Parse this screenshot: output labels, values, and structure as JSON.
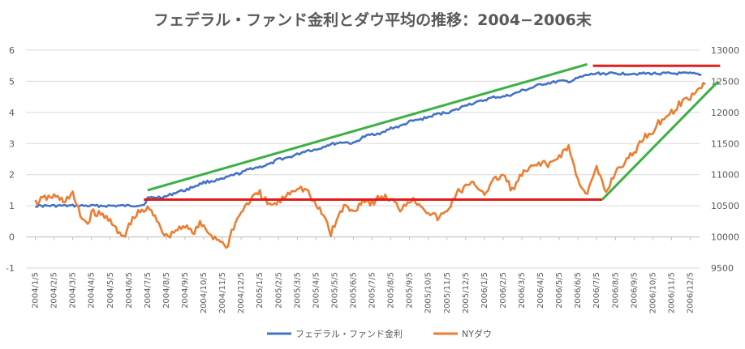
{
  "chart_data": {
    "type": "line",
    "title": "フェデラル・ファンド金利とダウ平均の推移：2004−2006末",
    "legend_position": "bottom",
    "grid": true,
    "y_left": {
      "min": -1,
      "max": 6,
      "ticks": [
        "-1",
        "0",
        "1",
        "2",
        "3",
        "4",
        "5",
        "6"
      ]
    },
    "y_right": {
      "min": 9500,
      "max": 13000,
      "ticks": [
        "9500",
        "10000",
        "10500",
        "11000",
        "11500",
        "12000",
        "12500",
        "13000"
      ]
    },
    "x_labels": [
      "2004/1/5",
      "2004/2/5",
      "2004/3/5",
      "2004/4/5",
      "2004/5/5",
      "2004/6/5",
      "2004/7/5",
      "2004/8/5",
      "2004/9/5",
      "2004/10/5",
      "2004/11/5",
      "2004/12/5",
      "2005/1/5",
      "2005/2/5",
      "2005/3/5",
      "2005/4/5",
      "2005/5/5",
      "2005/6/5",
      "2005/7/5",
      "2005/8/5",
      "2005/9/5",
      "2005/10/5",
      "2005/11/5",
      "2005/12/5",
      "2006/1/5",
      "2006/2/5",
      "2006/3/5",
      "2006/4/5",
      "2006/5/5",
      "2006/6/5",
      "2006/7/5",
      "2006/8/5",
      "2006/9/5",
      "2006/10/5",
      "2006/11/5",
      "2006/12/5"
    ],
    "series": [
      {
        "name": "フェデラル・ファンド金利",
        "axis": "left",
        "color": "#4472C4",
        "points": [
          [
            0,
            1.0
          ],
          [
            1,
            1.0
          ],
          [
            2,
            1.0
          ],
          [
            3,
            1.0
          ],
          [
            4,
            1.0
          ],
          [
            5,
            1.0
          ],
          [
            5.8,
            1.03
          ],
          [
            6.0,
            1.25
          ],
          [
            6.5,
            1.27
          ],
          [
            7.0,
            1.3
          ],
          [
            7.6,
            1.45
          ],
          [
            8.0,
            1.5
          ],
          [
            8.6,
            1.65
          ],
          [
            9.0,
            1.75
          ],
          [
            9.5,
            1.8
          ],
          [
            10.0,
            1.85
          ],
          [
            10.6,
            2.0
          ],
          [
            11.0,
            2.05
          ],
          [
            11.5,
            2.2
          ],
          [
            12.0,
            2.25
          ],
          [
            12.6,
            2.35
          ],
          [
            13.0,
            2.5
          ],
          [
            13.5,
            2.55
          ],
          [
            14.0,
            2.65
          ],
          [
            14.5,
            2.78
          ],
          [
            15.0,
            2.8
          ],
          [
            15.6,
            2.95
          ],
          [
            16.0,
            3.0
          ],
          [
            16.5,
            3.05
          ],
          [
            17.0,
            3.0
          ],
          [
            17.5,
            3.2
          ],
          [
            18.0,
            3.3
          ],
          [
            18.6,
            3.35
          ],
          [
            19.0,
            3.5
          ],
          [
            19.5,
            3.55
          ],
          [
            20.0,
            3.7
          ],
          [
            20.6,
            3.78
          ],
          [
            21.0,
            3.85
          ],
          [
            21.5,
            3.95
          ],
          [
            22.0,
            4.0
          ],
          [
            22.6,
            4.1
          ],
          [
            23.0,
            4.25
          ],
          [
            23.5,
            4.3
          ],
          [
            24.0,
            4.4
          ],
          [
            24.6,
            4.5
          ],
          [
            25.0,
            4.5
          ],
          [
            25.6,
            4.6
          ],
          [
            26.0,
            4.7
          ],
          [
            26.5,
            4.78
          ],
          [
            27.0,
            4.9
          ],
          [
            27.5,
            4.95
          ],
          [
            28.0,
            5.0
          ],
          [
            28.6,
            5.0
          ],
          [
            29.0,
            5.1
          ],
          [
            29.5,
            5.2
          ],
          [
            30.0,
            5.25
          ],
          [
            30.5,
            5.25
          ],
          [
            31.0,
            5.25
          ],
          [
            32.0,
            5.25
          ],
          [
            33.0,
            5.25
          ],
          [
            34.0,
            5.25
          ],
          [
            35.0,
            5.25
          ],
          [
            35.6,
            5.22
          ]
        ]
      },
      {
        "name": "NYダウ",
        "axis": "right",
        "color": "#ED7D31",
        "points": [
          [
            0,
            10550
          ],
          [
            0.5,
            10620
          ],
          [
            1,
            10650
          ],
          [
            1.5,
            10580
          ],
          [
            2,
            10680
          ],
          [
            2.4,
            10350
          ],
          [
            2.8,
            10200
          ],
          [
            3.0,
            10400
          ],
          [
            3.5,
            10350
          ],
          [
            4.0,
            10300
          ],
          [
            4.4,
            10050
          ],
          [
            4.8,
            10000
          ],
          [
            5.0,
            10200
          ],
          [
            5.5,
            10380
          ],
          [
            6.0,
            10450
          ],
          [
            6.4,
            10350
          ],
          [
            6.8,
            10100
          ],
          [
            7.0,
            10000
          ],
          [
            7.5,
            10100
          ],
          [
            8.0,
            10200
          ],
          [
            8.4,
            10050
          ],
          [
            8.8,
            10200
          ],
          [
            9.0,
            10150
          ],
          [
            9.5,
            10000
          ],
          [
            9.9,
            9950
          ],
          [
            10.2,
            9800
          ],
          [
            10.5,
            10100
          ],
          [
            11.0,
            10400
          ],
          [
            11.5,
            10600
          ],
          [
            12.0,
            10700
          ],
          [
            12.5,
            10500
          ],
          [
            13.0,
            10550
          ],
          [
            13.5,
            10700
          ],
          [
            14.0,
            10800
          ],
          [
            14.5,
            10750
          ],
          [
            15.0,
            10500
          ],
          [
            15.5,
            10300
          ],
          [
            15.8,
            10050
          ],
          [
            16.0,
            10200
          ],
          [
            16.5,
            10500
          ],
          [
            17.0,
            10400
          ],
          [
            17.5,
            10600
          ],
          [
            18.0,
            10550
          ],
          [
            18.5,
            10650
          ],
          [
            19.0,
            10600
          ],
          [
            19.5,
            10450
          ],
          [
            20.0,
            10600
          ],
          [
            20.5,
            10550
          ],
          [
            21.0,
            10400
          ],
          [
            21.5,
            10300
          ],
          [
            22.0,
            10400
          ],
          [
            22.5,
            10700
          ],
          [
            23.0,
            10800
          ],
          [
            23.5,
            10850
          ],
          [
            24.0,
            10700
          ],
          [
            24.5,
            10900
          ],
          [
            25.0,
            11000
          ],
          [
            25.5,
            10750
          ],
          [
            26.0,
            11000
          ],
          [
            26.5,
            11100
          ],
          [
            27.0,
            11200
          ],
          [
            27.5,
            11150
          ],
          [
            28.0,
            11300
          ],
          [
            28.5,
            11450
          ],
          [
            29.0,
            10900
          ],
          [
            29.5,
            10700
          ],
          [
            30.0,
            11100
          ],
          [
            30.5,
            10700
          ],
          [
            31.0,
            11050
          ],
          [
            31.5,
            11200
          ],
          [
            32.0,
            11350
          ],
          [
            32.5,
            11600
          ],
          [
            33.0,
            11700
          ],
          [
            33.5,
            11900
          ],
          [
            34.0,
            12000
          ],
          [
            34.5,
            12150
          ],
          [
            35.0,
            12250
          ],
          [
            35.5,
            12400
          ],
          [
            35.8,
            12450
          ]
        ]
      }
    ],
    "annotations": [
      {
        "type": "trendline",
        "color": "#3CB043",
        "from": {
          "x": 6.0,
          "y": 1.5,
          "axis": "left"
        },
        "to": {
          "x": 29.5,
          "y": 5.55,
          "axis": "left"
        }
      },
      {
        "type": "hline",
        "color": "#E31B1B",
        "from": {
          "x": 29.8,
          "y": 5.5,
          "axis": "left"
        },
        "to": {
          "x": 36.6,
          "y": 5.5,
          "axis": "left"
        }
      },
      {
        "type": "hline",
        "color": "#E31B1B",
        "from": {
          "x": 5.8,
          "y": 1.2,
          "axis": "left"
        },
        "to": {
          "x": 30.3,
          "y": 1.2,
          "axis": "left"
        }
      },
      {
        "type": "trendline",
        "color": "#3CB043",
        "from": {
          "x": 30.3,
          "y": 1.2,
          "axis": "left"
        },
        "to": {
          "x": 36.5,
          "y": 5.0,
          "axis": "left"
        }
      }
    ]
  }
}
